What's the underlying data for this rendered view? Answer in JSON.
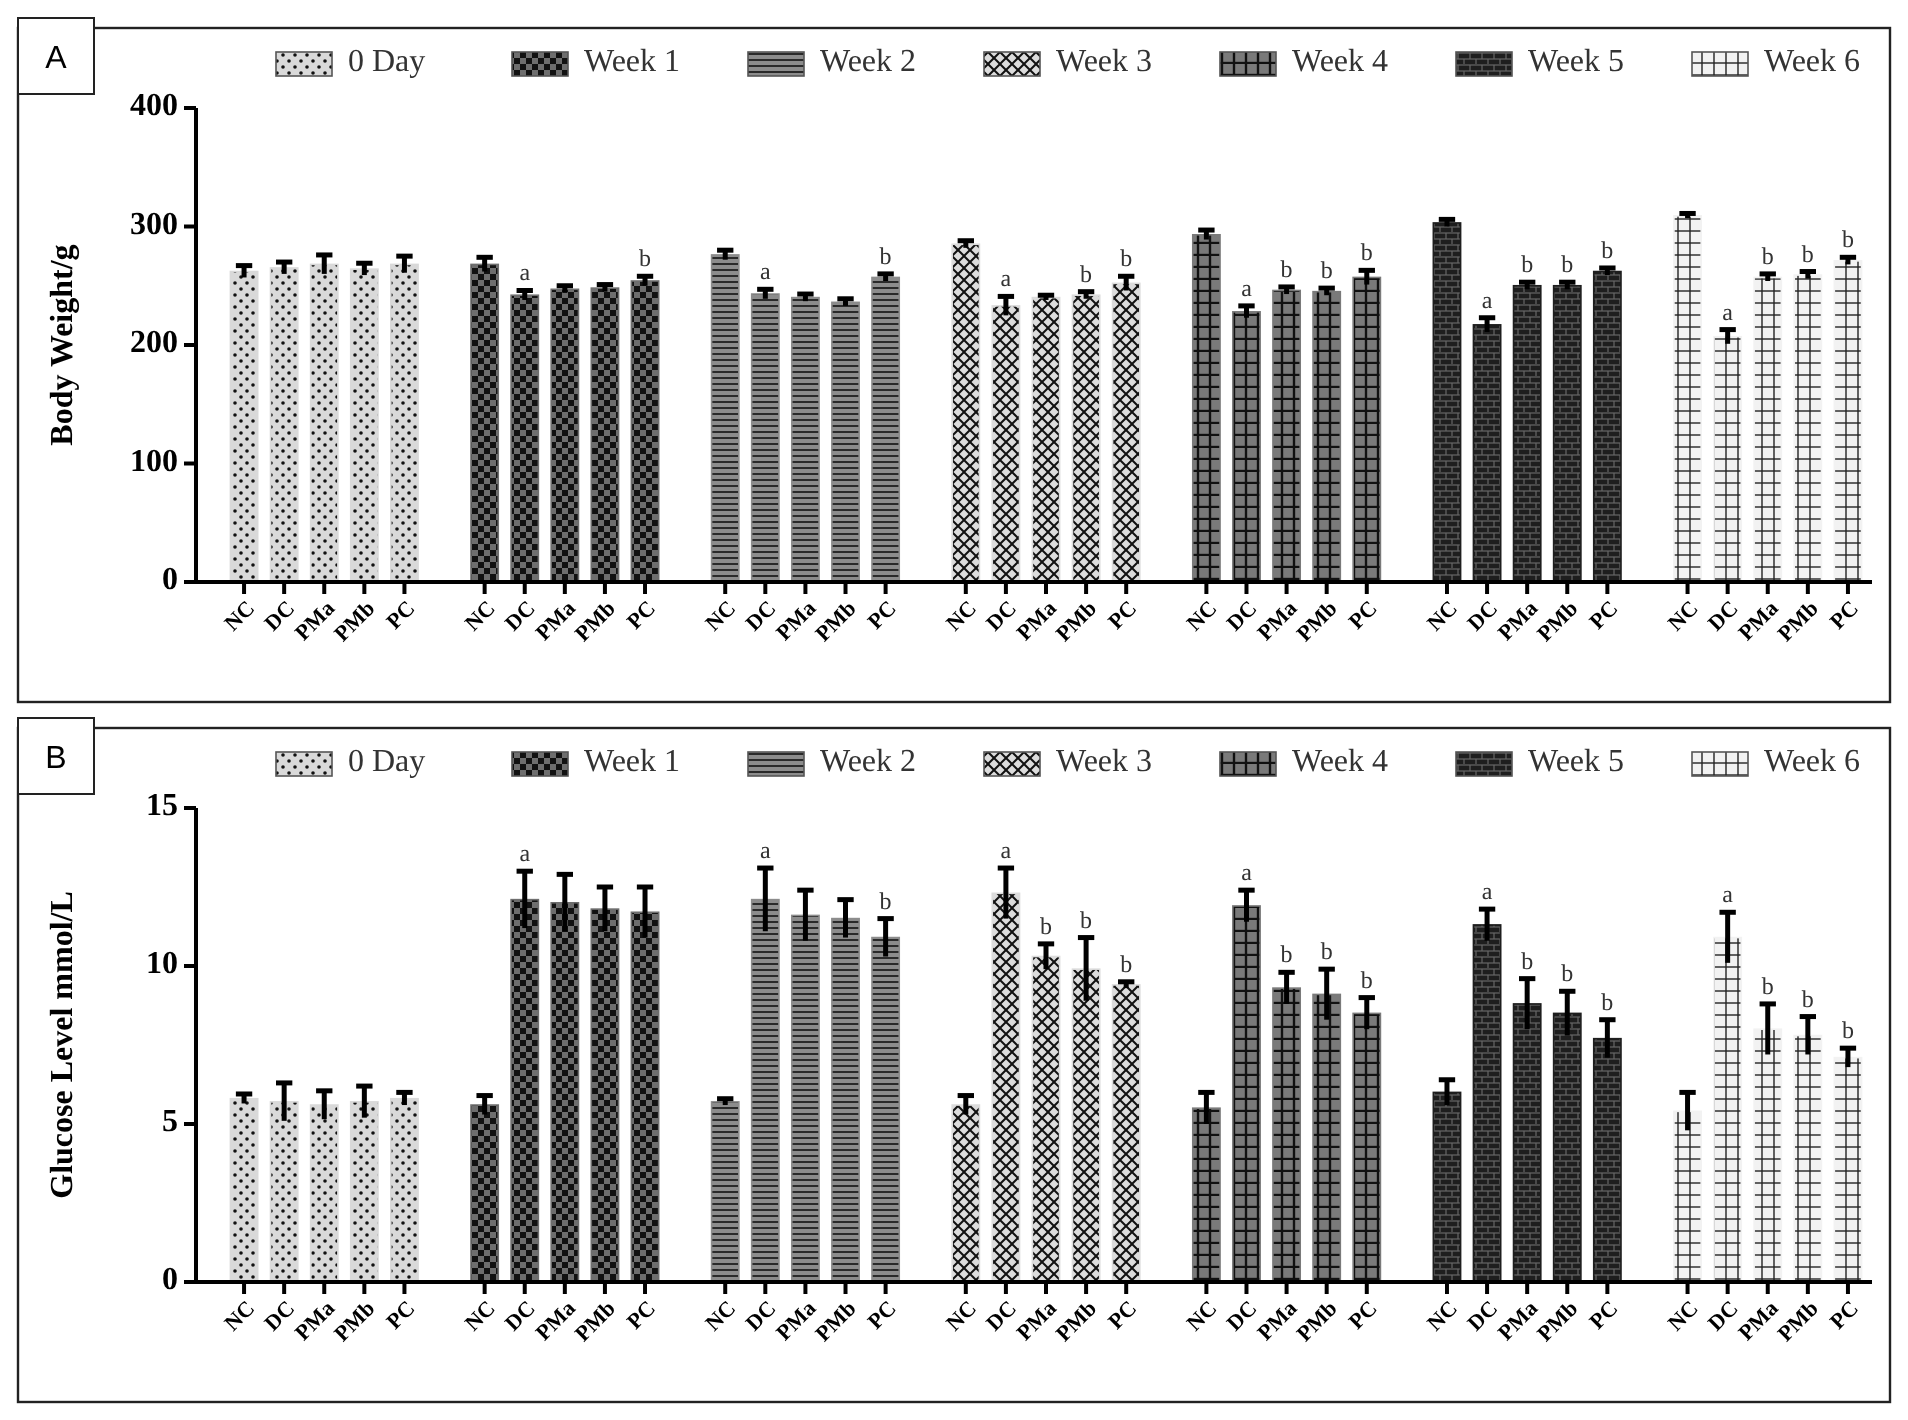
{
  "chart_data": [
    {
      "type": "bar",
      "ylabel": "Body Weight/g",
      "categories": [
        "NC",
        "DC",
        "PMa",
        "PMb",
        "PC",
        null,
        "NC",
        "DC",
        "PMa",
        "PMb",
        "PC",
        null,
        "NC",
        "DC",
        "PMa",
        "PMb",
        "PC",
        null,
        "NC",
        "DC",
        "PMa",
        "PMb",
        "PC",
        null,
        "NC",
        "DC",
        "PMa",
        "PMb",
        "PC",
        null,
        "NC",
        "DC",
        "PMa",
        "PMb",
        "PC",
        null,
        "NC",
        "DC",
        "PMa",
        "PMb",
        "PC"
      ],
      "ylim": [
        0,
        400
      ],
      "yticks": [
        0,
        100,
        200,
        300,
        400
      ],
      "legend": "top",
      "annotations": [
        "A"
      ],
      "series": [
        {
          "name": "0 Day",
          "color": "#d9d9d9",
          "values": [
            262,
            265,
            268,
            264,
            268,
            null,
            null,
            null,
            null,
            null,
            null,
            null,
            null,
            null,
            null,
            null,
            null,
            null,
            null,
            null,
            null,
            null,
            null,
            null,
            null,
            null,
            null,
            null,
            null,
            null,
            null,
            null,
            null,
            null,
            null,
            null,
            null,
            null,
            null,
            null,
            null
          ],
          "errors": [
            5,
            5,
            8,
            5,
            7,
            null,
            null,
            null,
            null,
            null,
            null,
            null,
            null,
            null,
            null,
            null,
            null,
            null,
            null,
            null,
            null,
            null,
            null,
            null,
            null,
            null,
            null,
            null,
            null,
            null,
            null,
            null,
            null,
            null,
            null,
            null,
            null,
            null,
            null,
            null,
            null
          ]
        },
        {
          "name": "Week 1",
          "color": "#6e6e6e",
          "values": [
            null,
            null,
            null,
            null,
            null,
            null,
            268,
            242,
            247,
            248,
            254,
            null,
            null,
            null,
            null,
            null,
            null,
            null,
            null,
            null,
            null,
            null,
            null,
            null,
            null,
            null,
            null,
            null,
            null,
            null,
            null,
            null,
            null,
            null,
            null,
            null,
            null,
            null,
            null,
            null,
            null
          ],
          "errors": [
            null,
            null,
            null,
            null,
            null,
            null,
            6,
            4,
            3,
            3,
            4,
            null,
            null,
            null,
            null,
            null,
            null,
            null,
            null,
            null,
            null,
            null,
            null,
            null,
            null,
            null,
            null,
            null,
            null,
            null,
            null,
            null,
            null,
            null,
            null,
            null,
            null,
            null,
            null,
            null,
            null
          ],
          "value_labels": [
            null,
            null,
            null,
            null,
            null,
            null,
            null,
            "a",
            null,
            null,
            "b",
            null,
            null,
            null,
            null,
            null,
            null,
            null,
            null,
            null,
            null,
            null,
            null,
            null,
            null,
            null,
            null,
            null,
            null,
            null,
            null,
            null,
            null,
            null,
            null,
            null,
            null,
            null,
            null,
            null,
            null
          ]
        },
        {
          "name": "Week 2",
          "color": "#8c8c8c",
          "values": [
            null,
            null,
            null,
            null,
            null,
            null,
            null,
            null,
            null,
            null,
            null,
            null,
            276,
            243,
            240,
            236,
            257,
            null,
            null,
            null,
            null,
            null,
            null,
            null,
            null,
            null,
            null,
            null,
            null,
            null,
            null,
            null,
            null,
            null,
            null,
            null,
            null,
            null,
            null,
            null,
            null
          ],
          "errors": [
            null,
            null,
            null,
            null,
            null,
            null,
            null,
            null,
            null,
            null,
            null,
            null,
            4,
            4,
            3,
            3,
            3,
            null,
            null,
            null,
            null,
            null,
            null,
            null,
            null,
            null,
            null,
            null,
            null,
            null,
            null,
            null,
            null,
            null,
            null,
            null,
            null,
            null,
            null,
            null,
            null
          ],
          "value_labels": [
            null,
            null,
            null,
            null,
            null,
            null,
            null,
            null,
            null,
            null,
            null,
            null,
            null,
            "a",
            null,
            null,
            "b",
            null,
            null,
            null,
            null,
            null,
            null,
            null,
            null,
            null,
            null,
            null,
            null,
            null,
            null,
            null,
            null,
            null,
            null,
            null,
            null,
            null,
            null,
            null,
            null
          ]
        },
        {
          "name": "Week 3",
          "color": "#dcdcdc",
          "values": [
            null,
            null,
            null,
            null,
            null,
            null,
            null,
            null,
            null,
            null,
            null,
            null,
            null,
            null,
            null,
            null,
            null,
            null,
            285,
            233,
            240,
            242,
            252,
            null,
            null,
            null,
            null,
            null,
            null,
            null,
            null,
            null,
            null,
            null,
            null,
            null,
            null,
            null,
            null,
            null,
            null
          ],
          "errors": [
            null,
            null,
            null,
            null,
            null,
            null,
            null,
            null,
            null,
            null,
            null,
            null,
            null,
            null,
            null,
            null,
            null,
            null,
            3,
            8,
            2,
            3,
            6,
            null,
            null,
            null,
            null,
            null,
            null,
            null,
            null,
            null,
            null,
            null,
            null,
            null,
            null,
            null,
            null,
            null,
            null
          ],
          "value_labels": [
            null,
            null,
            null,
            null,
            null,
            null,
            null,
            null,
            null,
            null,
            null,
            null,
            null,
            null,
            null,
            null,
            null,
            null,
            null,
            "a",
            null,
            "b",
            "b",
            null,
            null,
            null,
            null,
            null,
            null,
            null,
            null,
            null,
            null,
            null,
            null,
            null,
            null,
            null,
            null,
            null,
            null
          ]
        },
        {
          "name": "Week 4",
          "color": "#7a7a7a",
          "values": [
            null,
            null,
            null,
            null,
            null,
            null,
            null,
            null,
            null,
            null,
            null,
            null,
            null,
            null,
            null,
            null,
            null,
            null,
            null,
            null,
            null,
            null,
            null,
            null,
            293,
            228,
            246,
            245,
            257,
            null,
            null,
            null,
            null,
            null,
            null,
            null,
            null,
            null,
            null,
            null,
            null
          ],
          "errors": [
            null,
            null,
            null,
            null,
            null,
            null,
            null,
            null,
            null,
            null,
            null,
            null,
            null,
            null,
            null,
            null,
            null,
            null,
            null,
            null,
            null,
            null,
            null,
            null,
            4,
            5,
            3,
            3,
            6,
            null,
            null,
            null,
            null,
            null,
            null,
            null,
            null,
            null,
            null,
            null,
            null
          ],
          "value_labels": [
            null,
            null,
            null,
            null,
            null,
            null,
            null,
            null,
            null,
            null,
            null,
            null,
            null,
            null,
            null,
            null,
            null,
            null,
            null,
            null,
            null,
            null,
            null,
            null,
            null,
            "a",
            "b",
            "b",
            "b",
            null,
            null,
            null,
            null,
            null,
            null,
            null,
            null,
            null,
            null,
            null,
            null
          ]
        },
        {
          "name": "Week 5",
          "color": "#1e1e1e",
          "values": [
            null,
            null,
            null,
            null,
            null,
            null,
            null,
            null,
            null,
            null,
            null,
            null,
            null,
            null,
            null,
            null,
            null,
            null,
            null,
            null,
            null,
            null,
            null,
            null,
            null,
            null,
            null,
            null,
            null,
            null,
            303,
            217,
            250,
            250,
            262,
            null,
            null,
            null,
            null,
            null,
            null
          ],
          "errors": [
            null,
            null,
            null,
            null,
            null,
            null,
            null,
            null,
            null,
            null,
            null,
            null,
            null,
            null,
            null,
            null,
            null,
            null,
            null,
            null,
            null,
            null,
            null,
            null,
            null,
            null,
            null,
            null,
            null,
            null,
            3,
            6,
            3,
            3,
            3,
            null,
            null,
            null,
            null,
            null,
            null
          ],
          "value_labels": [
            null,
            null,
            null,
            null,
            null,
            null,
            null,
            null,
            null,
            null,
            null,
            null,
            null,
            null,
            null,
            null,
            null,
            null,
            null,
            null,
            null,
            null,
            null,
            null,
            null,
            null,
            null,
            null,
            null,
            null,
            null,
            "a",
            "b",
            "b",
            "b",
            null,
            null,
            null,
            null,
            null,
            null
          ]
        },
        {
          "name": "Week 6",
          "color": "#f2f2f2",
          "values": [
            null,
            null,
            null,
            null,
            null,
            null,
            null,
            null,
            null,
            null,
            null,
            null,
            null,
            null,
            null,
            null,
            null,
            null,
            null,
            null,
            null,
            null,
            null,
            null,
            null,
            null,
            null,
            null,
            null,
            null,
            null,
            null,
            null,
            null,
            null,
            null,
            309,
            207,
            257,
            259,
            271
          ],
          "errors": [
            null,
            null,
            null,
            null,
            null,
            null,
            null,
            null,
            null,
            null,
            null,
            null,
            null,
            null,
            null,
            null,
            null,
            null,
            null,
            null,
            null,
            null,
            null,
            null,
            null,
            null,
            null,
            null,
            null,
            null,
            null,
            null,
            null,
            null,
            null,
            null,
            2,
            6,
            3,
            3,
            3
          ],
          "value_labels": [
            null,
            null,
            null,
            null,
            null,
            null,
            null,
            null,
            null,
            null,
            null,
            null,
            null,
            null,
            null,
            null,
            null,
            null,
            null,
            null,
            null,
            null,
            null,
            null,
            null,
            null,
            null,
            null,
            null,
            null,
            null,
            null,
            null,
            null,
            null,
            null,
            null,
            "a",
            "b",
            "b",
            "b"
          ]
        }
      ]
    },
    {
      "type": "bar",
      "ylabel": "Glucose Level mmol/L",
      "categories": [
        "NC",
        "DC",
        "PMa",
        "PMb",
        "PC",
        null,
        "NC",
        "DC",
        "PMa",
        "PMb",
        "PC",
        null,
        "NC",
        "DC",
        "PMa",
        "PMb",
        "PC",
        null,
        "NC",
        "DC",
        "PMa",
        "PMb",
        "PC",
        null,
        "NC",
        "DC",
        "PMa",
        "PMb",
        "PC",
        null,
        "NC",
        "DC",
        "PMa",
        "PMb",
        "PC",
        null,
        "NC",
        "DC",
        "PMa",
        "PMb",
        "PC"
      ],
      "ylim": [
        0,
        15
      ],
      "yticks": [
        0,
        5,
        10,
        15
      ],
      "legend": "top",
      "annotations": [
        "B"
      ],
      "series": [
        {
          "name": "0 Day",
          "color": "#d9d9d9",
          "values": [
            5.8,
            5.7,
            5.6,
            5.7,
            5.8,
            null,
            null,
            null,
            null,
            null,
            null,
            null,
            null,
            null,
            null,
            null,
            null,
            null,
            null,
            null,
            null,
            null,
            null,
            null,
            null,
            null,
            null,
            null,
            null,
            null,
            null,
            null,
            null,
            null,
            null,
            null,
            null,
            null,
            null,
            null,
            null
          ],
          "errors": [
            0.15,
            0.6,
            0.45,
            0.5,
            0.2,
            null,
            null,
            null,
            null,
            null,
            null,
            null,
            null,
            null,
            null,
            null,
            null,
            null,
            null,
            null,
            null,
            null,
            null,
            null,
            null,
            null,
            null,
            null,
            null,
            null,
            null,
            null,
            null,
            null,
            null,
            null,
            null,
            null,
            null,
            null,
            null
          ]
        },
        {
          "name": "Week 1",
          "color": "#6e6e6e",
          "values": [
            null,
            null,
            null,
            null,
            null,
            null,
            5.6,
            12.1,
            12.0,
            11.8,
            11.7,
            null,
            null,
            null,
            null,
            null,
            null,
            null,
            null,
            null,
            null,
            null,
            null,
            null,
            null,
            null,
            null,
            null,
            null,
            null,
            null,
            null,
            null,
            null,
            null,
            null,
            null,
            null,
            null,
            null,
            null
          ],
          "errors": [
            null,
            null,
            null,
            null,
            null,
            null,
            0.3,
            0.9,
            0.9,
            0.7,
            0.8,
            null,
            null,
            null,
            null,
            null,
            null,
            null,
            null,
            null,
            null,
            null,
            null,
            null,
            null,
            null,
            null,
            null,
            null,
            null,
            null,
            null,
            null,
            null,
            null,
            null,
            null,
            null,
            null,
            null,
            null
          ],
          "value_labels": [
            null,
            null,
            null,
            null,
            null,
            null,
            null,
            "a",
            null,
            null,
            null,
            null,
            null,
            null,
            null,
            null,
            null,
            null,
            null,
            null,
            null,
            null,
            null,
            null,
            null,
            null,
            null,
            null,
            null,
            null,
            null,
            null,
            null,
            null,
            null,
            null,
            null,
            null,
            null,
            null,
            null
          ]
        },
        {
          "name": "Week 2",
          "color": "#8c8c8c",
          "values": [
            null,
            null,
            null,
            null,
            null,
            null,
            null,
            null,
            null,
            null,
            null,
            null,
            5.7,
            12.1,
            11.6,
            11.5,
            10.9,
            null,
            null,
            null,
            null,
            null,
            null,
            null,
            null,
            null,
            null,
            null,
            null,
            null,
            null,
            null,
            null,
            null,
            null,
            null,
            null,
            null,
            null,
            null,
            null
          ],
          "errors": [
            null,
            null,
            null,
            null,
            null,
            null,
            null,
            null,
            null,
            null,
            null,
            null,
            0.1,
            1.0,
            0.8,
            0.6,
            0.6,
            null,
            null,
            null,
            null,
            null,
            null,
            null,
            null,
            null,
            null,
            null,
            null,
            null,
            null,
            null,
            null,
            null,
            null,
            null,
            null,
            null,
            null,
            null,
            null
          ],
          "value_labels": [
            null,
            null,
            null,
            null,
            null,
            null,
            null,
            null,
            null,
            null,
            null,
            null,
            null,
            "a",
            null,
            null,
            "b",
            null,
            null,
            null,
            null,
            null,
            null,
            null,
            null,
            null,
            null,
            null,
            null,
            null,
            null,
            null,
            null,
            null,
            null,
            null,
            null,
            null,
            null,
            null,
            null
          ]
        },
        {
          "name": "Week 3",
          "color": "#dcdcdc",
          "values": [
            null,
            null,
            null,
            null,
            null,
            null,
            null,
            null,
            null,
            null,
            null,
            null,
            null,
            null,
            null,
            null,
            null,
            null,
            5.6,
            12.3,
            10.3,
            9.9,
            9.4,
            null,
            null,
            null,
            null,
            null,
            null,
            null,
            null,
            null,
            null,
            null,
            null,
            null,
            null,
            null,
            null,
            null,
            null
          ],
          "errors": [
            null,
            null,
            null,
            null,
            null,
            null,
            null,
            null,
            null,
            null,
            null,
            null,
            null,
            null,
            null,
            null,
            null,
            null,
            0.3,
            0.8,
            0.4,
            1.0,
            0.1,
            null,
            null,
            null,
            null,
            null,
            null,
            null,
            null,
            null,
            null,
            null,
            null,
            null,
            null,
            null,
            null,
            null,
            null
          ],
          "value_labels": [
            null,
            null,
            null,
            null,
            null,
            null,
            null,
            null,
            null,
            null,
            null,
            null,
            null,
            null,
            null,
            null,
            null,
            null,
            null,
            "a",
            "b",
            "b",
            "b",
            null,
            null,
            null,
            null,
            null,
            null,
            null,
            null,
            null,
            null,
            null,
            null,
            null,
            null,
            null,
            null,
            null,
            null
          ]
        },
        {
          "name": "Week 4",
          "color": "#7a7a7a",
          "values": [
            null,
            null,
            null,
            null,
            null,
            null,
            null,
            null,
            null,
            null,
            null,
            null,
            null,
            null,
            null,
            null,
            null,
            null,
            null,
            null,
            null,
            null,
            null,
            null,
            5.5,
            11.9,
            9.3,
            9.1,
            8.5,
            null,
            null,
            null,
            null,
            null,
            null,
            null,
            null,
            null,
            null,
            null,
            null
          ],
          "errors": [
            null,
            null,
            null,
            null,
            null,
            null,
            null,
            null,
            null,
            null,
            null,
            null,
            null,
            null,
            null,
            null,
            null,
            null,
            null,
            null,
            null,
            null,
            null,
            null,
            0.5,
            0.5,
            0.5,
            0.8,
            0.5,
            null,
            null,
            null,
            null,
            null,
            null,
            null,
            null,
            null,
            null,
            null,
            null
          ],
          "value_labels": [
            null,
            null,
            null,
            null,
            null,
            null,
            null,
            null,
            null,
            null,
            null,
            null,
            null,
            null,
            null,
            null,
            null,
            null,
            null,
            null,
            null,
            null,
            null,
            null,
            null,
            "a",
            "b",
            "b",
            "b",
            null,
            null,
            null,
            null,
            null,
            null,
            null,
            null,
            null,
            null,
            null,
            null
          ]
        },
        {
          "name": "Week 5",
          "color": "#1e1e1e",
          "values": [
            null,
            null,
            null,
            null,
            null,
            null,
            null,
            null,
            null,
            null,
            null,
            null,
            null,
            null,
            null,
            null,
            null,
            null,
            null,
            null,
            null,
            null,
            null,
            null,
            null,
            null,
            null,
            null,
            null,
            null,
            6.0,
            11.3,
            8.8,
            8.5,
            7.7,
            null,
            null,
            null,
            null,
            null,
            null
          ],
          "errors": [
            null,
            null,
            null,
            null,
            null,
            null,
            null,
            null,
            null,
            null,
            null,
            null,
            null,
            null,
            null,
            null,
            null,
            null,
            null,
            null,
            null,
            null,
            null,
            null,
            null,
            null,
            null,
            null,
            null,
            null,
            0.4,
            0.5,
            0.8,
            0.7,
            0.6,
            null,
            null,
            null,
            null,
            null,
            null
          ],
          "value_labels": [
            null,
            null,
            null,
            null,
            null,
            null,
            null,
            null,
            null,
            null,
            null,
            null,
            null,
            null,
            null,
            null,
            null,
            null,
            null,
            null,
            null,
            null,
            null,
            null,
            null,
            null,
            null,
            null,
            null,
            null,
            null,
            "a",
            "b",
            "b",
            "b",
            null,
            null,
            null,
            null,
            null,
            null
          ]
        },
        {
          "name": "Week 6",
          "color": "#f2f2f2",
          "values": [
            null,
            null,
            null,
            null,
            null,
            null,
            null,
            null,
            null,
            null,
            null,
            null,
            null,
            null,
            null,
            null,
            null,
            null,
            null,
            null,
            null,
            null,
            null,
            null,
            null,
            null,
            null,
            null,
            null,
            null,
            null,
            null,
            null,
            null,
            null,
            null,
            5.4,
            10.9,
            8.0,
            7.8,
            7.1
          ],
          "errors": [
            null,
            null,
            null,
            null,
            null,
            null,
            null,
            null,
            null,
            null,
            null,
            null,
            null,
            null,
            null,
            null,
            null,
            null,
            null,
            null,
            null,
            null,
            null,
            null,
            null,
            null,
            null,
            null,
            null,
            null,
            null,
            null,
            null,
            null,
            null,
            null,
            0.6,
            0.8,
            0.8,
            0.6,
            0.3
          ],
          "value_labels": [
            null,
            null,
            null,
            null,
            null,
            null,
            null,
            null,
            null,
            null,
            null,
            null,
            null,
            null,
            null,
            null,
            null,
            null,
            null,
            null,
            null,
            null,
            null,
            null,
            null,
            null,
            null,
            null,
            null,
            null,
            null,
            null,
            null,
            null,
            null,
            null,
            null,
            "a",
            "b",
            "b",
            "b"
          ]
        }
      ]
    }
  ]
}
